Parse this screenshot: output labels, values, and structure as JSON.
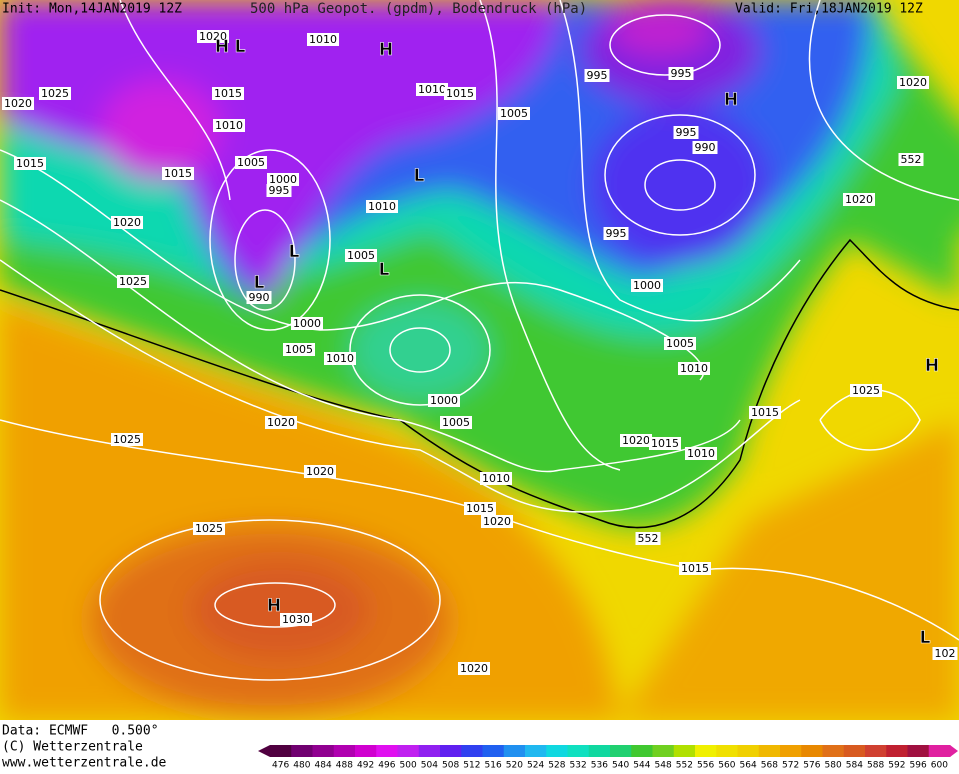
{
  "header": {
    "init": "Init: Mon,14JAN2019 12Z",
    "title": "500 hPa Geopot. (gpdm), Bodendruck (hPa)",
    "valid": "Valid: Fri,18JAN2019 12Z"
  },
  "isobar_labels": [
    "1020",
    "1010",
    "1025",
    "1020",
    "1015",
    "1010",
    "1015",
    "995",
    "995",
    "1005",
    "1010",
    "1015",
    "1015",
    "1005",
    "1000",
    "995",
    "995",
    "990",
    "1020",
    "1010",
    "1020",
    "995",
    "1005",
    "1025",
    "990",
    "1000",
    "1000",
    "1005",
    "1010",
    "1005",
    "1010",
    "1020",
    "1025",
    "1015",
    "1000",
    "1005",
    "1020",
    "1025",
    "1020",
    "1015",
    "1010",
    "1020",
    "1010",
    "1015",
    "1020",
    "1025",
    "552",
    "552",
    "1015",
    "1030",
    "1020",
    "102"
  ],
  "pressure_centers": [
    "H",
    "L",
    "H",
    "H",
    "L",
    "L",
    "L",
    "L",
    "H",
    "H",
    "L"
  ],
  "footer": {
    "data": "Data: ECMWF   0.500°",
    "copyright": "(C) Wetterzentrale",
    "url": "www.wetterzentrale.de"
  },
  "legend": {
    "ticks": [
      476,
      480,
      484,
      488,
      492,
      496,
      500,
      504,
      508,
      512,
      516,
      520,
      524,
      528,
      532,
      536,
      540,
      544,
      548,
      552,
      556,
      560,
      564,
      568,
      572,
      576,
      580,
      584,
      588,
      592,
      596,
      600
    ],
    "colors": [
      "#500040",
      "#700070",
      "#900090",
      "#b000b0",
      "#d000d0",
      "#e010f0",
      "#c020f0",
      "#9020f0",
      "#6020f0",
      "#3040f0",
      "#2060f0",
      "#2090f0",
      "#20b8f0",
      "#10d8e0",
      "#10e0c0",
      "#10d8a0",
      "#20d070",
      "#40c830",
      "#70d020",
      "#b0e000",
      "#f0f000",
      "#f0e000",
      "#f0d000",
      "#f0b800",
      "#f0a000",
      "#e88800",
      "#e07018",
      "#d85a20",
      "#d04030",
      "#c02030",
      "#a01040",
      "#e020a0"
    ]
  }
}
